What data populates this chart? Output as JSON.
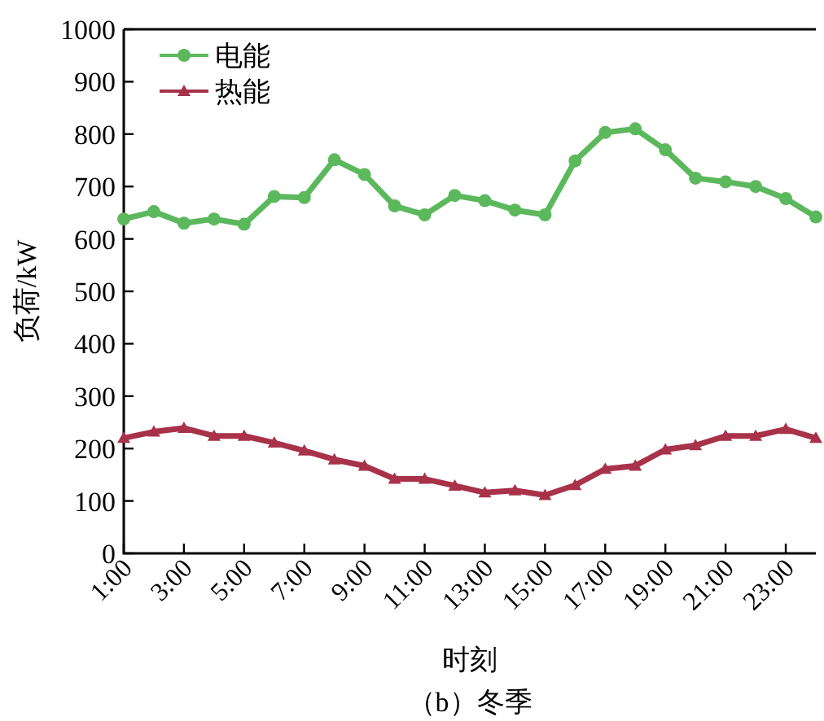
{
  "chart_data": {
    "type": "line",
    "title": "（b）冬季",
    "xlabel": "时刻",
    "ylabel": "负荷/kW",
    "x": [
      1,
      2,
      3,
      4,
      5,
      6,
      7,
      8,
      9,
      10,
      11,
      12,
      13,
      14,
      15,
      16,
      17,
      18,
      19,
      20,
      21,
      22,
      23,
      24
    ],
    "series": [
      {
        "name": "电能",
        "color": "#5cb85c",
        "marker": "circle",
        "values": [
          638,
          652,
          630,
          638,
          628,
          681,
          679,
          751,
          723,
          663,
          646,
          683,
          673,
          655,
          646,
          749,
          803,
          810,
          770,
          716,
          709,
          700,
          677,
          642
        ]
      },
      {
        "name": "热能",
        "color": "#a8324a",
        "marker": "triangle",
        "values": [
          220,
          232,
          239,
          224,
          224,
          211,
          196,
          179,
          167,
          142,
          142,
          129,
          116,
          120,
          111,
          130,
          161,
          167,
          198,
          206,
          224,
          224,
          237,
          220
        ]
      }
    ],
    "xlim": [
      1,
      24
    ],
    "xticks": [
      {
        "value": 1,
        "label": "1:00"
      },
      {
        "value": 3,
        "label": "3:00"
      },
      {
        "value": 5,
        "label": "5:00"
      },
      {
        "value": 7,
        "label": "7:00"
      },
      {
        "value": 9,
        "label": "9:00"
      },
      {
        "value": 11,
        "label": "11:00"
      },
      {
        "value": 13,
        "label": "13:00"
      },
      {
        "value": 15,
        "label": "15:00"
      },
      {
        "value": 17,
        "label": "17:00"
      },
      {
        "value": 19,
        "label": "19:00"
      },
      {
        "value": 21,
        "label": "21:00"
      },
      {
        "value": 23,
        "label": "23:00"
      }
    ],
    "ylim": [
      0,
      1000
    ],
    "yticks": [
      0,
      100,
      200,
      300,
      400,
      500,
      600,
      700,
      800,
      900,
      1000
    ],
    "grid": false,
    "legend": "top left",
    "line_style": "solid"
  }
}
